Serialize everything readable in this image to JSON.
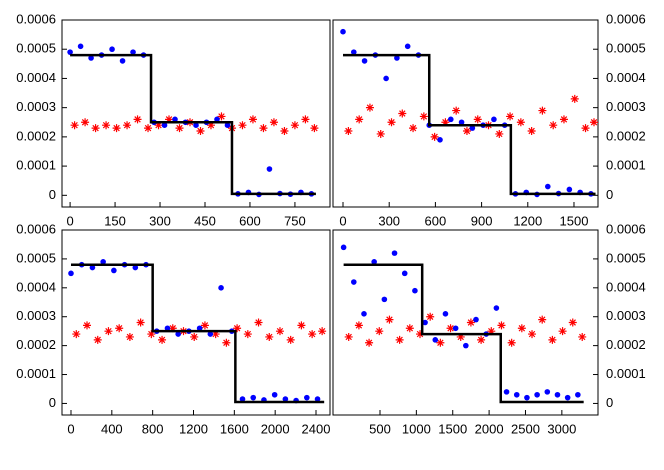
{
  "chart_data": [
    {
      "type": "scatter",
      "xlim": [
        -27,
        867
      ],
      "ylim": [
        -4e-05,
        0.0006
      ],
      "xticks": [
        0,
        150,
        300,
        450,
        600,
        750
      ],
      "yticks": [
        0,
        0.0001,
        0.0002,
        0.0003,
        0.0004,
        0.0005,
        0.0006
      ],
      "ytick_side": "left",
      "series": [
        {
          "color": "#ff0000",
          "marker": "star",
          "x": [
            15,
            50,
            85,
            120,
            155,
            190,
            225,
            260,
            295,
            330,
            365,
            400,
            435,
            470,
            505,
            540,
            575,
            610,
            645,
            680,
            715,
            750,
            785,
            815
          ],
          "values": [
            0.00024,
            0.00025,
            0.00023,
            0.00024,
            0.00023,
            0.00024,
            0.00026,
            0.00023,
            0.00024,
            0.00026,
            0.00023,
            0.00025,
            0.00022,
            0.00024,
            0.00027,
            0.00023,
            0.00024,
            0.00026,
            0.00023,
            0.00025,
            0.00022,
            0.00024,
            0.00026,
            0.00023
          ]
        },
        {
          "color": "#0000ff",
          "marker": "circle",
          "x": [
            0,
            35,
            70,
            105,
            140,
            175,
            210,
            245,
            280,
            315,
            350,
            385,
            420,
            455,
            490,
            525,
            560,
            595,
            630,
            665,
            700,
            735,
            770,
            805
          ],
          "values": [
            0.00049,
            0.00051,
            0.00047,
            0.00048,
            0.0005,
            0.00046,
            0.00049,
            0.00048,
            0.00025,
            0.00024,
            0.00026,
            0.00025,
            0.00024,
            0.00025,
            0.00026,
            0.00024,
            5e-06,
            1e-05,
            3e-06,
            9e-05,
            6e-06,
            4e-06,
            1e-05,
            5e-06
          ]
        },
        {
          "color": "#000000",
          "marker": "line",
          "x": [
            0,
            270,
            270,
            540,
            540,
            820
          ],
          "values": [
            0.00048,
            0.00048,
            0.00025,
            0.00025,
            5e-06,
            5e-06
          ]
        }
      ]
    },
    {
      "type": "scatter",
      "xlim": [
        -65,
        1656
      ],
      "ylim": [
        -4e-05,
        0.0006
      ],
      "xticks": [
        0,
        300,
        600,
        900,
        1200,
        1500
      ],
      "yticks": [
        0,
        0.0001,
        0.0002,
        0.0003,
        0.0004,
        0.0005,
        0.0006
      ],
      "ytick_side": "right",
      "series": [
        {
          "color": "#ff0000",
          "marker": "star",
          "x": [
            35,
            105,
            175,
            245,
            315,
            385,
            455,
            525,
            595,
            665,
            735,
            805,
            875,
            945,
            1015,
            1085,
            1155,
            1225,
            1295,
            1365,
            1435,
            1505,
            1575,
            1630
          ],
          "values": [
            0.00022,
            0.00026,
            0.0003,
            0.00021,
            0.00025,
            0.00028,
            0.00023,
            0.00027,
            0.0002,
            0.00025,
            0.00029,
            0.00022,
            0.00026,
            0.00024,
            0.00021,
            0.00027,
            0.00025,
            0.00022,
            0.00029,
            0.00024,
            0.00026,
            0.00033,
            0.00023,
            0.00025
          ]
        },
        {
          "color": "#0000ff",
          "marker": "circle",
          "x": [
            0,
            70,
            140,
            210,
            280,
            350,
            420,
            490,
            560,
            630,
            700,
            770,
            840,
            910,
            980,
            1050,
            1120,
            1190,
            1260,
            1330,
            1400,
            1470,
            1540,
            1610
          ],
          "values": [
            0.00056,
            0.00049,
            0.00046,
            0.00048,
            0.0004,
            0.00047,
            0.00051,
            0.00048,
            0.00024,
            0.00019,
            0.00026,
            0.00025,
            0.00023,
            0.00024,
            0.00026,
            0.00024,
            5e-06,
            1e-05,
            3e-06,
            3e-05,
            6e-06,
            2e-05,
            1e-05,
            5e-06
          ]
        },
        {
          "color": "#000000",
          "marker": "line",
          "x": [
            0,
            560,
            560,
            1090,
            1090,
            1640
          ],
          "values": [
            0.00048,
            0.00048,
            0.00024,
            0.00024,
            5e-06,
            5e-06
          ]
        }
      ]
    },
    {
      "type": "scatter",
      "xlim": [
        -88,
        2537
      ],
      "ylim": [
        -4e-05,
        0.0006
      ],
      "xticks": [
        0,
        400,
        800,
        1200,
        1600,
        2000,
        2400
      ],
      "yticks": [
        0,
        0.0001,
        0.0002,
        0.0003,
        0.0004,
        0.0005,
        0.0006
      ],
      "ytick_side": "left",
      "series": [
        {
          "color": "#ff0000",
          "marker": "star",
          "x": [
            52,
            157,
            262,
            367,
            472,
            577,
            682,
            787,
            892,
            997,
            1102,
            1207,
            1312,
            1417,
            1522,
            1627,
            1732,
            1837,
            1942,
            2047,
            2152,
            2257,
            2362,
            2460
          ],
          "values": [
            0.00024,
            0.00027,
            0.00022,
            0.00025,
            0.00026,
            0.00023,
            0.00028,
            0.00024,
            0.00022,
            0.00026,
            0.00025,
            0.00023,
            0.00027,
            0.00024,
            0.00021,
            0.00026,
            0.00024,
            0.00028,
            0.00023,
            0.00025,
            0.00022,
            0.00027,
            0.00024,
            0.00025
          ]
        },
        {
          "color": "#0000ff",
          "marker": "circle",
          "x": [
            0,
            105,
            210,
            315,
            420,
            525,
            630,
            735,
            840,
            945,
            1050,
            1155,
            1260,
            1365,
            1470,
            1575,
            1680,
            1785,
            1890,
            1995,
            2100,
            2205,
            2310,
            2415
          ],
          "values": [
            0.00045,
            0.00048,
            0.00047,
            0.00049,
            0.00046,
            0.00048,
            0.00047,
            0.00048,
            0.00025,
            0.00026,
            0.00024,
            0.00025,
            0.00026,
            0.00024,
            0.0004,
            0.00025,
            1.5e-05,
            2e-05,
            1.2e-05,
            3e-05,
            1.5e-05,
            1e-05,
            2e-05,
            1.5e-05
          ]
        },
        {
          "color": "#000000",
          "marker": "line",
          "x": [
            0,
            800,
            800,
            1610,
            1610,
            2480
          ],
          "values": [
            0.00048,
            0.00048,
            0.00025,
            0.00025,
            5e-06,
            5e-06
          ]
        }
      ]
    },
    {
      "type": "scatter",
      "xlim": [
        -146,
        3497
      ],
      "ylim": [
        -4e-05,
        0.0006
      ],
      "xticks": [
        500,
        1000,
        1500,
        2000,
        2500,
        3000
      ],
      "yticks": [
        0,
        0.0001,
        0.0002,
        0.0003,
        0.0004,
        0.0005,
        0.0006
      ],
      "ytick_side": "right",
      "series": [
        {
          "color": "#ff0000",
          "marker": "star",
          "x": [
            70,
            210,
            350,
            490,
            630,
            770,
            910,
            1050,
            1190,
            1330,
            1470,
            1610,
            1750,
            1890,
            2030,
            2170,
            2310,
            2450,
            2590,
            2730,
            2870,
            3010,
            3150,
            3280
          ],
          "values": [
            0.00023,
            0.00027,
            0.00021,
            0.00025,
            0.00029,
            0.00022,
            0.00026,
            0.00024,
            0.0003,
            0.00021,
            0.00026,
            0.00023,
            0.00028,
            0.00022,
            0.00025,
            0.00027,
            0.00021,
            0.00026,
            0.00024,
            0.00029,
            0.00022,
            0.00025,
            0.00028,
            0.00023
          ]
        },
        {
          "color": "#0000ff",
          "marker": "circle",
          "x": [
            0,
            140,
            280,
            420,
            560,
            700,
            840,
            980,
            1120,
            1260,
            1400,
            1540,
            1680,
            1820,
            1960,
            2100,
            2240,
            2380,
            2520,
            2660,
            2800,
            2940,
            3080,
            3220
          ],
          "values": [
            0.00054,
            0.00042,
            0.00031,
            0.00049,
            0.00036,
            0.00052,
            0.00045,
            0.00039,
            0.00028,
            0.00022,
            0.00031,
            0.00026,
            0.0002,
            0.00029,
            0.00024,
            0.00033,
            4e-05,
            3e-05,
            2e-05,
            3e-05,
            4e-05,
            3e-05,
            2e-05,
            3e-05
          ]
        },
        {
          "color": "#000000",
          "marker": "line",
          "x": [
            0,
            1080,
            1080,
            2160,
            2160,
            3300
          ],
          "values": [
            0.00048,
            0.00048,
            0.00024,
            0.00024,
            5e-06,
            5e-06
          ]
        }
      ]
    }
  ]
}
